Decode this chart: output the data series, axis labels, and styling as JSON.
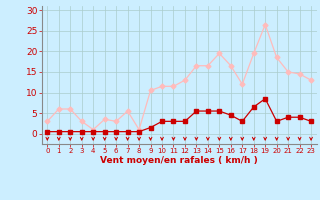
{
  "hours": [
    0,
    1,
    2,
    3,
    4,
    5,
    6,
    7,
    8,
    9,
    10,
    11,
    12,
    13,
    14,
    15,
    16,
    17,
    18,
    19,
    20,
    21,
    22,
    23
  ],
  "wind_avg": [
    0.5,
    0.5,
    0.5,
    0.5,
    0.5,
    0.5,
    0.5,
    0.5,
    0.5,
    1.5,
    3.0,
    3.0,
    3.0,
    5.5,
    5.5,
    5.5,
    4.5,
    3.0,
    6.5,
    8.5,
    3.0,
    4.0,
    4.0,
    3.0
  ],
  "wind_gust": [
    3.0,
    6.0,
    6.0,
    3.0,
    1.0,
    3.5,
    3.0,
    5.5,
    1.0,
    10.5,
    11.5,
    11.5,
    13.0,
    16.5,
    16.5,
    19.5,
    16.5,
    12.0,
    19.5,
    26.5,
    18.5,
    15.0,
    14.5,
    13.0
  ],
  "avg_color": "#cc0000",
  "gust_color": "#ffbbbb",
  "background_color": "#cceeff",
  "grid_color": "#aacccc",
  "xlabel": "Vent moyen/en rafales ( km/h )",
  "xlabel_color": "#cc0000",
  "yticks": [
    0,
    5,
    10,
    15,
    20,
    25,
    30
  ],
  "ylim": [
    -2.5,
    31
  ],
  "xlim": [
    -0.5,
    23.5
  ],
  "tick_color": "#cc0000",
  "arrow_color": "#cc0000",
  "spine_color": "#888888"
}
